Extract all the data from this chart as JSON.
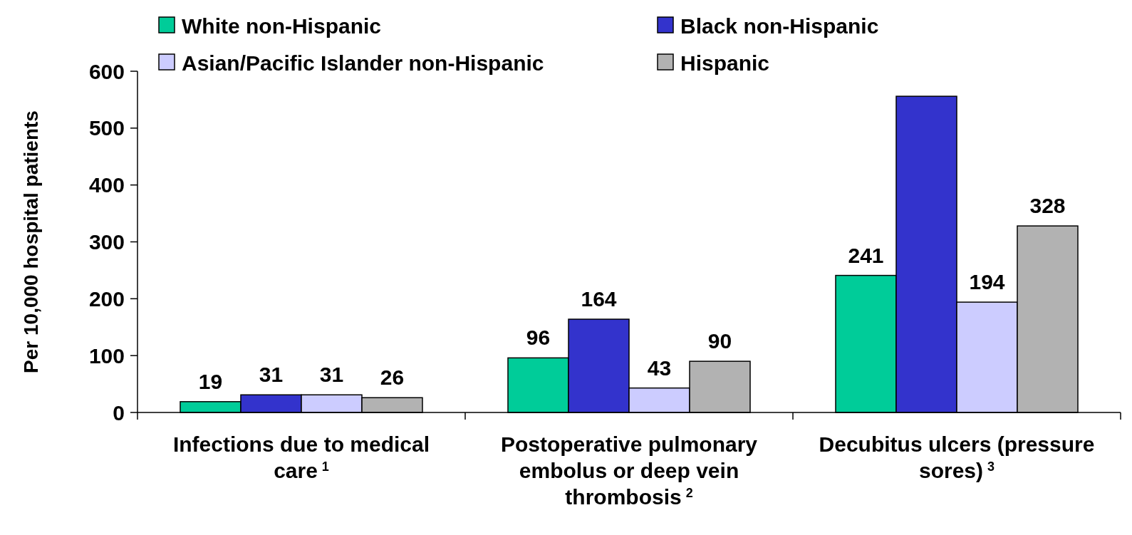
{
  "chart_data": {
    "type": "bar",
    "ylabel": "Per 10,000 hospital patients",
    "categories": [
      "Infections due to medical care$^{1}$",
      "Postoperative pulmonary embolus or deep vein thrombosis$^{2}$",
      "Decubitus ulcers (pressure sores)$^{3}$"
    ],
    "series": [
      {
        "name": "White non-Hispanic",
        "color": "#00cc99",
        "values": [
          19,
          96,
          241
        ],
        "value_labels": [
          "19",
          "96",
          "241"
        ]
      },
      {
        "name": "Black non-Hispanic",
        "color": "#3333cc",
        "values": [
          31,
          164,
          556
        ],
        "value_labels": [
          "31",
          "164",
          null
        ]
      },
      {
        "name": "Asian/Pacific Islander non-Hispanic",
        "color": "#ccccff",
        "values": [
          31,
          43,
          194
        ],
        "value_labels": [
          "31",
          "43",
          "194"
        ]
      },
      {
        "name": "Hispanic",
        "color": "#b2b2b2",
        "values": [
          26,
          90,
          328
        ],
        "value_labels": [
          "26",
          "90",
          "328"
        ]
      }
    ],
    "ylim": [
      0,
      600
    ],
    "yticks": [
      0,
      100,
      200,
      300,
      400,
      500,
      600
    ],
    "grid": false,
    "legend": "top"
  }
}
